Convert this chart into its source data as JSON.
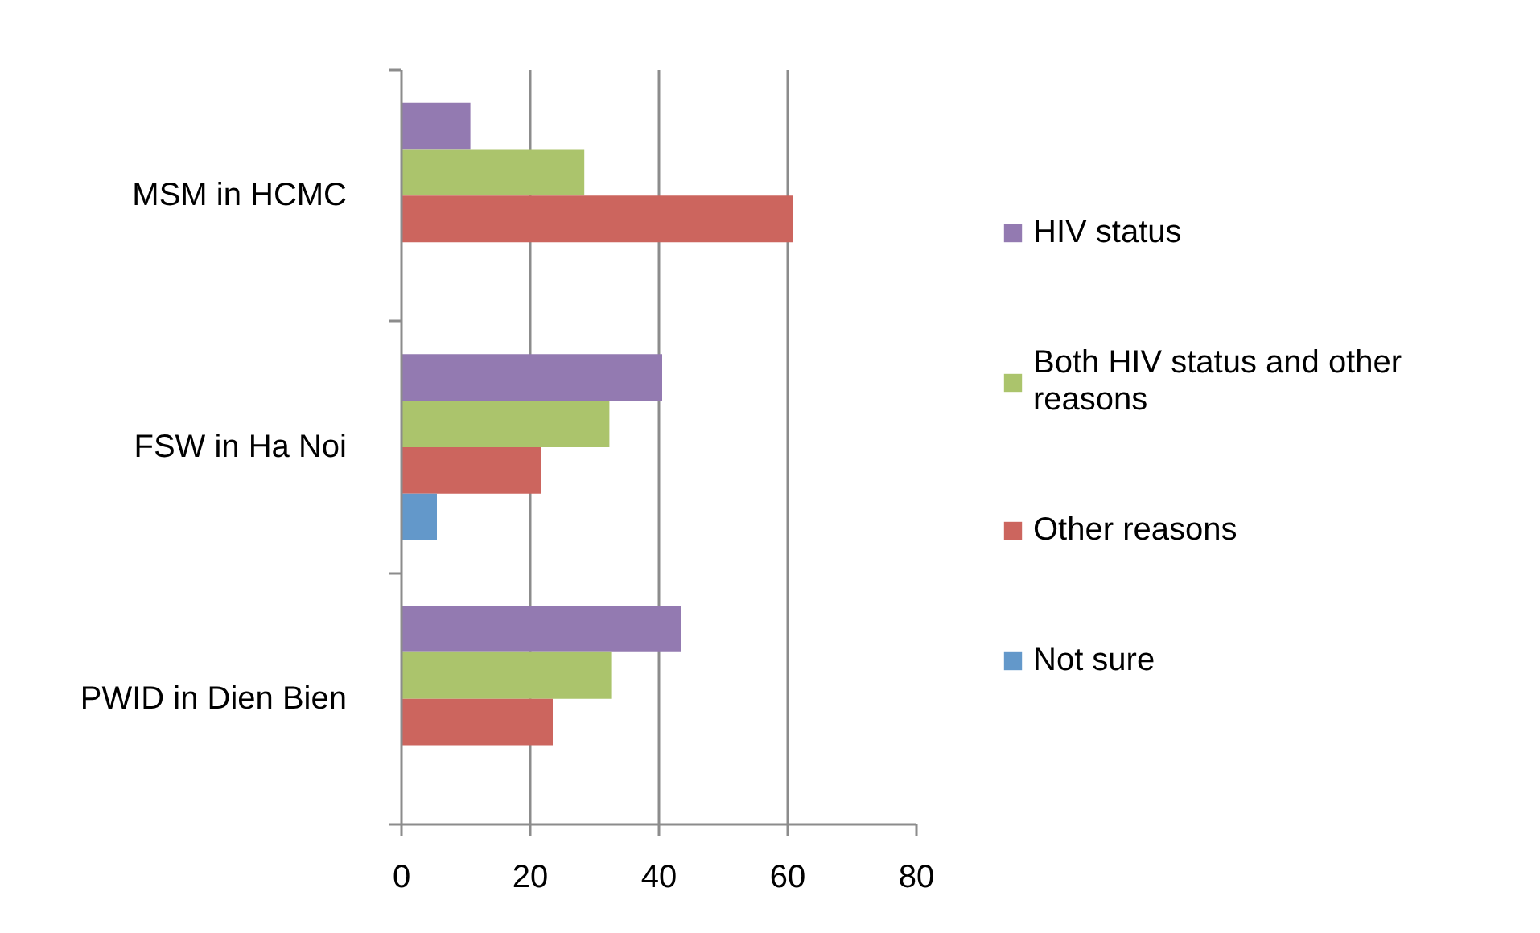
{
  "chart_data": {
    "type": "bar",
    "orientation": "horizontal",
    "categories": [
      "MSM in HCMC",
      "FSW in Ha Noi",
      "PWID in Dien Bien"
    ],
    "series": [
      {
        "name": "HIV status",
        "color": "#937ab1",
        "values": [
          10.7,
          40.5,
          43.5
        ]
      },
      {
        "name": "Both HIV status and other reasons",
        "color": "#abc46c",
        "values": [
          28.4,
          32.3,
          32.7
        ]
      },
      {
        "name": "Other reasons",
        "color": "#cc655e",
        "values": [
          60.8,
          21.7,
          23.5
        ]
      },
      {
        "name": "Not sure",
        "color": "#6398ca",
        "values": [
          null,
          5.5,
          null
        ]
      }
    ],
    "xlim": [
      0,
      80
    ],
    "xticks": [
      0,
      20,
      40,
      60,
      80
    ],
    "grid": "x",
    "legend": "right"
  }
}
